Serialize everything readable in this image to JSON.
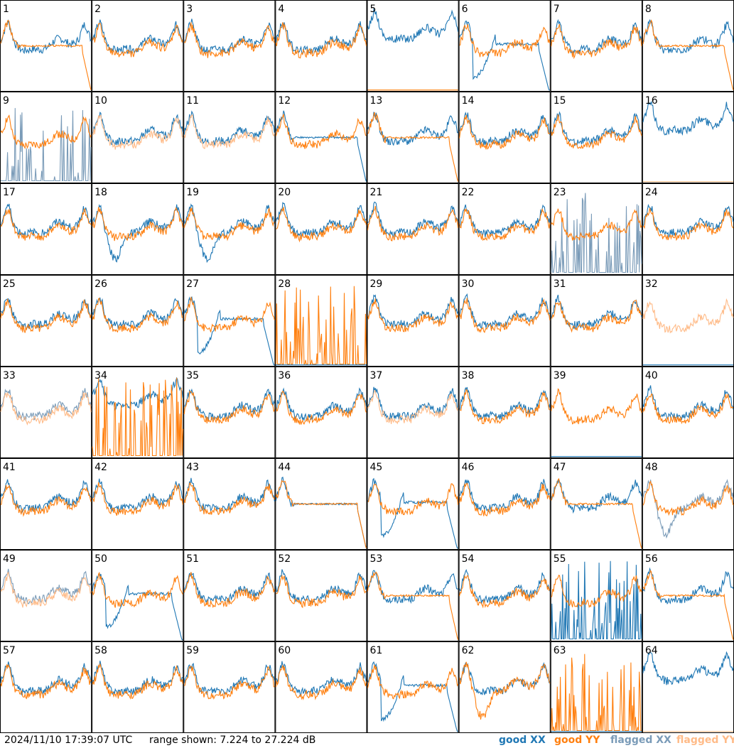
{
  "footer": {
    "timestamp": "2024/11/10 17:39:07 UTC",
    "range_text": "range shown: 7.224 to 27.224 dB"
  },
  "legend": {
    "good_xx": "good XX",
    "good_yy": "good YY",
    "flagged_xx": "flagged XX",
    "flagged_yy": "flagged YY"
  },
  "colors": {
    "good_xx": "#1f77b4",
    "good_yy": "#ff7f0e",
    "flagged_xx": "#7a9bb8",
    "flagged_yy": "#ffbb88",
    "panel_border": "#000000"
  },
  "chart_data": {
    "type": "line",
    "grid_rows": 8,
    "grid_cols": 8,
    "ylim_db": [
      7.224,
      27.224
    ],
    "series_names": [
      "good XX",
      "good YY",
      "flagged XX",
      "flagged YY"
    ],
    "panels": [
      {
        "id": 1,
        "xx": "good",
        "yy": "good",
        "xx_shape": "normal",
        "yy_shape": "rolloff"
      },
      {
        "id": 2,
        "xx": "good",
        "yy": "good",
        "xx_shape": "normal",
        "yy_shape": "normal"
      },
      {
        "id": 3,
        "xx": "good",
        "yy": "good",
        "xx_shape": "normal",
        "yy_shape": "normal"
      },
      {
        "id": 4,
        "xx": "good",
        "yy": "good",
        "xx_shape": "normal",
        "yy_shape": "normal"
      },
      {
        "id": 5,
        "xx": "good",
        "yy": "good",
        "xx_shape": "high",
        "yy_shape": "floor"
      },
      {
        "id": 6,
        "xx": "good",
        "yy": "good",
        "xx_shape": "dip_rolloff",
        "yy_shape": "normal"
      },
      {
        "id": 7,
        "xx": "good",
        "yy": "good",
        "xx_shape": "normal",
        "yy_shape": "normal"
      },
      {
        "id": 8,
        "xx": "good",
        "yy": "good",
        "xx_shape": "normal",
        "yy_shape": "rolloff"
      },
      {
        "id": 9,
        "xx": "flagged",
        "yy": "good",
        "xx_shape": "spiky",
        "yy_shape": "normal"
      },
      {
        "id": 10,
        "xx": "good",
        "yy": "flagged",
        "xx_shape": "normal",
        "yy_shape": "normal"
      },
      {
        "id": 11,
        "xx": "good",
        "yy": "flagged",
        "xx_shape": "normal",
        "yy_shape": "normal"
      },
      {
        "id": 12,
        "xx": "good",
        "yy": "good",
        "xx_shape": "rolloff",
        "yy_shape": "normal"
      },
      {
        "id": 13,
        "xx": "good",
        "yy": "good",
        "xx_shape": "normal",
        "yy_shape": "rolloff"
      },
      {
        "id": 14,
        "xx": "good",
        "yy": "good",
        "xx_shape": "normal",
        "yy_shape": "normal"
      },
      {
        "id": 15,
        "xx": "good",
        "yy": "good",
        "xx_shape": "normal",
        "yy_shape": "normal"
      },
      {
        "id": 16,
        "xx": "good",
        "yy": "flagged",
        "xx_shape": "high",
        "yy_shape": "floor"
      },
      {
        "id": 17,
        "xx": "good",
        "yy": "good",
        "xx_shape": "normal",
        "yy_shape": "normal"
      },
      {
        "id": 18,
        "xx": "good",
        "yy": "good",
        "xx_shape": "dip",
        "yy_shape": "normal"
      },
      {
        "id": 19,
        "xx": "good",
        "yy": "good",
        "xx_shape": "dip",
        "yy_shape": "normal"
      },
      {
        "id": 20,
        "xx": "good",
        "yy": "good",
        "xx_shape": "normal",
        "yy_shape": "normal"
      },
      {
        "id": 21,
        "xx": "good",
        "yy": "good",
        "xx_shape": "normal",
        "yy_shape": "normal"
      },
      {
        "id": 22,
        "xx": "good",
        "yy": "good",
        "xx_shape": "normal",
        "yy_shape": "normal"
      },
      {
        "id": 23,
        "xx": "flagged",
        "yy": "good",
        "xx_shape": "spiky",
        "yy_shape": "normal"
      },
      {
        "id": 24,
        "xx": "good",
        "yy": "good",
        "xx_shape": "normal",
        "yy_shape": "normal"
      },
      {
        "id": 25,
        "xx": "good",
        "yy": "good",
        "xx_shape": "normal",
        "yy_shape": "normal"
      },
      {
        "id": 26,
        "xx": "good",
        "yy": "good",
        "xx_shape": "normal",
        "yy_shape": "normal"
      },
      {
        "id": 27,
        "xx": "good",
        "yy": "good",
        "xx_shape": "dip_rolloff",
        "yy_shape": "normal"
      },
      {
        "id": 28,
        "xx": "good",
        "yy": "good",
        "xx_shape": "floor",
        "yy_shape": "spiky"
      },
      {
        "id": 29,
        "xx": "good",
        "yy": "good",
        "xx_shape": "normal",
        "yy_shape": "normal"
      },
      {
        "id": 30,
        "xx": "good",
        "yy": "good",
        "xx_shape": "normal",
        "yy_shape": "normal"
      },
      {
        "id": 31,
        "xx": "good",
        "yy": "good",
        "xx_shape": "normal",
        "yy_shape": "normal"
      },
      {
        "id": 32,
        "xx": "good",
        "yy": "flagged",
        "xx_shape": "floor",
        "yy_shape": "normal"
      },
      {
        "id": 33,
        "xx": "flagged",
        "yy": "flagged",
        "xx_shape": "normal",
        "yy_shape": "normal"
      },
      {
        "id": 34,
        "xx": "good",
        "yy": "good",
        "xx_shape": "high",
        "yy_shape": "spiky"
      },
      {
        "id": 35,
        "xx": "good",
        "yy": "good",
        "xx_shape": "normal",
        "yy_shape": "normal"
      },
      {
        "id": 36,
        "xx": "good",
        "yy": "good",
        "xx_shape": "normal",
        "yy_shape": "normal"
      },
      {
        "id": 37,
        "xx": "good",
        "yy": "flagged",
        "xx_shape": "normal",
        "yy_shape": "normal"
      },
      {
        "id": 38,
        "xx": "good",
        "yy": "good",
        "xx_shape": "normal",
        "yy_shape": "normal"
      },
      {
        "id": 39,
        "xx": "good",
        "yy": "good",
        "xx_shape": "floor",
        "yy_shape": "normal"
      },
      {
        "id": 40,
        "xx": "good",
        "yy": "good",
        "xx_shape": "normal",
        "yy_shape": "normal"
      },
      {
        "id": 41,
        "xx": "good",
        "yy": "good",
        "xx_shape": "normal",
        "yy_shape": "normal"
      },
      {
        "id": 42,
        "xx": "good",
        "yy": "good",
        "xx_shape": "normal",
        "yy_shape": "normal"
      },
      {
        "id": 43,
        "xx": "good",
        "yy": "good",
        "xx_shape": "normal",
        "yy_shape": "normal"
      },
      {
        "id": 44,
        "xx": "good",
        "yy": "good",
        "xx_shape": "rolloff",
        "yy_shape": "rolloff"
      },
      {
        "id": 45,
        "xx": "good",
        "yy": "good",
        "xx_shape": "dip_rolloff",
        "yy_shape": "normal"
      },
      {
        "id": 46,
        "xx": "good",
        "yy": "good",
        "xx_shape": "normal",
        "yy_shape": "normal"
      },
      {
        "id": 47,
        "xx": "good",
        "yy": "good",
        "xx_shape": "normal",
        "yy_shape": "rolloff"
      },
      {
        "id": 48,
        "xx": "flagged",
        "yy": "good",
        "xx_shape": "dip",
        "yy_shape": "normal"
      },
      {
        "id": 49,
        "xx": "flagged",
        "yy": "flagged",
        "xx_shape": "normal",
        "yy_shape": "normal"
      },
      {
        "id": 50,
        "xx": "good",
        "yy": "good",
        "xx_shape": "dip_rolloff",
        "yy_shape": "normal"
      },
      {
        "id": 51,
        "xx": "good",
        "yy": "good",
        "xx_shape": "normal",
        "yy_shape": "normal"
      },
      {
        "id": 52,
        "xx": "good",
        "yy": "good",
        "xx_shape": "normal",
        "yy_shape": "normal"
      },
      {
        "id": 53,
        "xx": "good",
        "yy": "good",
        "xx_shape": "normal",
        "yy_shape": "rolloff"
      },
      {
        "id": 54,
        "xx": "good",
        "yy": "good",
        "xx_shape": "normal",
        "yy_shape": "normal"
      },
      {
        "id": 55,
        "xx": "good",
        "yy": "good",
        "xx_shape": "spiky",
        "yy_shape": "normal"
      },
      {
        "id": 56,
        "xx": "good",
        "yy": "good",
        "xx_shape": "normal",
        "yy_shape": "rolloff"
      },
      {
        "id": 57,
        "xx": "good",
        "yy": "good",
        "xx_shape": "normal",
        "yy_shape": "normal"
      },
      {
        "id": 58,
        "xx": "good",
        "yy": "good",
        "xx_shape": "normal",
        "yy_shape": "normal"
      },
      {
        "id": 59,
        "xx": "good",
        "yy": "good",
        "xx_shape": "normal",
        "yy_shape": "normal"
      },
      {
        "id": 60,
        "xx": "good",
        "yy": "good",
        "xx_shape": "normal",
        "yy_shape": "normal"
      },
      {
        "id": 61,
        "xx": "good",
        "yy": "good",
        "xx_shape": "dip_rolloff",
        "yy_shape": "normal"
      },
      {
        "id": 62,
        "xx": "good",
        "yy": "good",
        "xx_shape": "normal",
        "yy_shape": "dip"
      },
      {
        "id": 63,
        "xx": "good",
        "yy": "good",
        "xx_shape": "floor",
        "yy_shape": "spiky"
      },
      {
        "id": 64,
        "xx": "good",
        "yy": "flagged",
        "xx_shape": "high",
        "yy_shape": "floor"
      }
    ]
  }
}
